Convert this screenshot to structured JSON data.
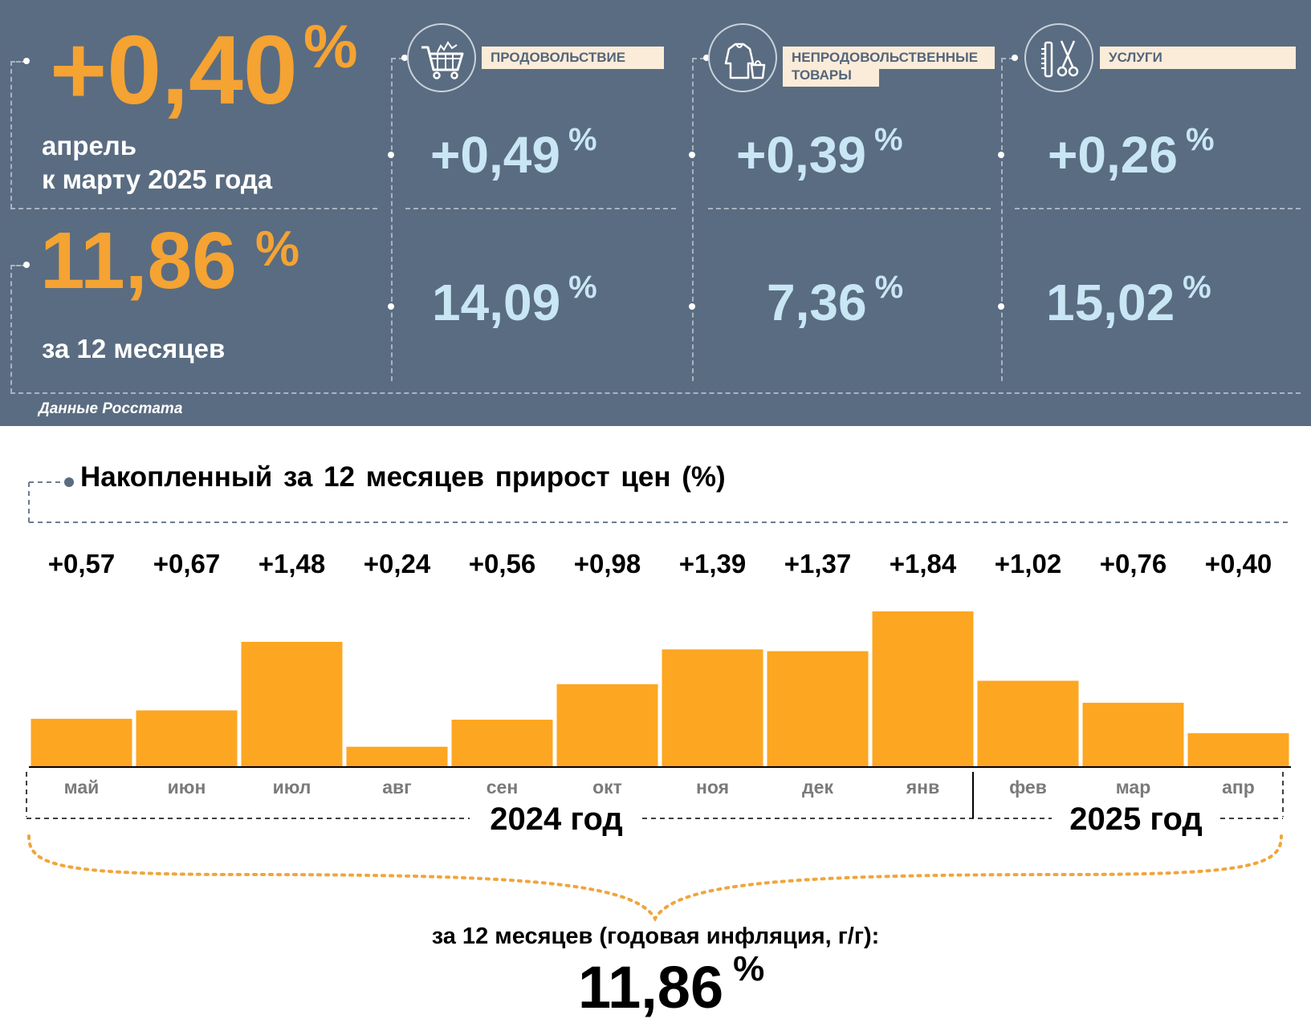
{
  "panel": {
    "monthly": {
      "value": "+0,40",
      "unit": "%",
      "caption_line1": "апрель",
      "caption_line2": "к марту 2025 года"
    },
    "annual": {
      "value": "11,86",
      "unit": "%",
      "caption": "за 12 месяцев"
    },
    "categories": [
      {
        "label_lines": [
          "ПРОДОВОЛЬСТВИЕ"
        ],
        "icon": "shopping-cart-icon",
        "monthly": "+0,49",
        "annual": "14,09",
        "unit": "%"
      },
      {
        "label_lines": [
          "НЕПРОДОВОЛЬСТВЕННЫЕ",
          "ТОВАРЫ"
        ],
        "icon": "clothes-bag-icon",
        "monthly": "+0,39",
        "annual": "7,36",
        "unit": "%"
      },
      {
        "label_lines": [
          "УСЛУГИ"
        ],
        "icon": "comb-scissors-icon",
        "monthly": "+0,26",
        "annual": "15,02",
        "unit": "%"
      }
    ],
    "source": "Данные Росстата"
  },
  "colors": {
    "panel_bg": "#5a6c81",
    "accent_orange": "#f5a332",
    "value_blue": "#c9e6f5",
    "bar": "#fda621",
    "label_bg": "#fbecd9"
  },
  "chart_data": {
    "type": "bar",
    "title": "Накопленный за 12 месяцев прирост цен (%)",
    "categories": [
      "май",
      "июн",
      "июл",
      "авг",
      "сен",
      "окт",
      "ноя",
      "дек",
      "янв",
      "фев",
      "мар",
      "апр"
    ],
    "values": [
      0.57,
      0.67,
      1.48,
      0.24,
      0.56,
      0.98,
      1.39,
      1.37,
      1.84,
      1.02,
      0.76,
      0.4
    ],
    "value_labels": [
      "+0,57",
      "+0,67",
      "+1,48",
      "+0,24",
      "+0,56",
      "+0,98",
      "+1,39",
      "+1,37",
      "+1,84",
      "+1,02",
      "+0,76",
      "+0,40"
    ],
    "year_groups": [
      {
        "label": "2024 год",
        "from": 0,
        "to": 8
      },
      {
        "label": "2025 год",
        "from": 9,
        "to": 11
      }
    ],
    "ylim": [
      0,
      1.84
    ],
    "grid": false
  },
  "summary": {
    "label": "за 12 месяцев (годовая инфляция, г/г):",
    "value": "11,86",
    "unit": "%"
  }
}
